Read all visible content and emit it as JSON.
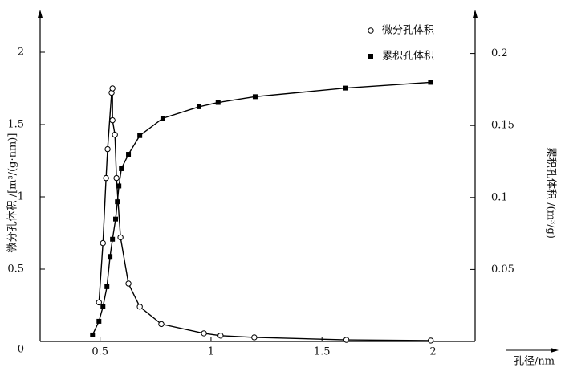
{
  "chart_data": {
    "type": "line",
    "x_label": "孔径/nm",
    "y_label": "微分孔体积 /[m³/(g·nm)]",
    "y2_label": "累积孔体积 /(m³/g)",
    "xlim": [
      0.23,
      2.19
    ],
    "xticks": [
      0.5,
      1,
      1.5,
      2
    ],
    "ylim": [
      0,
      2.25
    ],
    "yticks": [
      0,
      0.5,
      1,
      1.5,
      2
    ],
    "y2lim": [
      0,
      0.226
    ],
    "y2ticks": [
      0.05,
      0.1,
      0.15,
      0.2
    ],
    "legend": "top-right",
    "series": [
      {
        "name": "微分孔体积",
        "color": "#000000",
        "marker": "circle",
        "axis": "y",
        "x": [
          0.495,
          0.513,
          0.527,
          0.534,
          0.552,
          0.556,
          0.556,
          0.567,
          0.574,
          0.592,
          0.628,
          0.679,
          0.776,
          0.968,
          1.043,
          1.195,
          1.61,
          1.99
        ],
        "values": [
          0.27,
          0.68,
          1.13,
          1.33,
          1.72,
          1.75,
          1.53,
          1.43,
          1.13,
          0.72,
          0.4,
          0.24,
          0.12,
          0.056,
          0.04,
          0.028,
          0.011,
          0.006
        ]
      },
      {
        "name": "累积孔体积",
        "color": "#000000",
        "marker": "square",
        "axis": "y2",
        "x": [
          0.466,
          0.495,
          0.513,
          0.531,
          0.545,
          0.556,
          0.57,
          0.578,
          0.585,
          0.596,
          0.628,
          0.679,
          0.783,
          0.946,
          1.032,
          1.199,
          1.607,
          1.989
        ],
        "values": [
          0.0045,
          0.014,
          0.024,
          0.038,
          0.059,
          0.071,
          0.085,
          0.097,
          0.108,
          0.12,
          0.13,
          0.143,
          0.155,
          0.163,
          0.166,
          0.17,
          0.176,
          0.18
        ]
      }
    ]
  }
}
